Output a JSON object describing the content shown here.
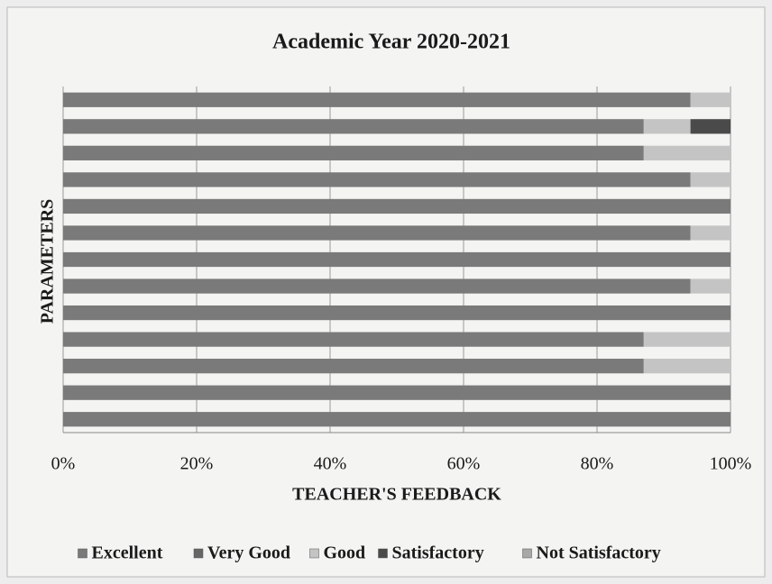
{
  "chart_data": {
    "type": "stacked_barh",
    "title": "Academic Year 2020-2021",
    "xlabel": "TEACHER'S FEEDBACK",
    "ylabel": "PARAMETERS",
    "categories": [
      null,
      null,
      null,
      null,
      null,
      null,
      null,
      null,
      null,
      null,
      null,
      null,
      null
    ],
    "series": [
      {
        "name": "Excellent",
        "color": "#7a7a7a",
        "values": [
          94,
          87,
          87,
          94,
          100,
          94,
          100,
          94,
          100,
          87,
          87,
          100,
          100
        ]
      },
      {
        "name": "Very Good",
        "color": "#666666",
        "values": [
          0,
          0,
          0,
          0,
          0,
          0,
          0,
          0,
          0,
          0,
          0,
          0,
          0
        ]
      },
      {
        "name": "Good",
        "color": "#c4c4c4",
        "values": [
          6,
          7,
          13,
          6,
          0,
          6,
          0,
          6,
          0,
          13,
          13,
          0,
          0
        ]
      },
      {
        "name": "Satisfactory",
        "color": "#4a4a4a",
        "values": [
          0,
          6,
          0,
          0,
          0,
          0,
          0,
          0,
          0,
          0,
          0,
          0,
          0
        ]
      },
      {
        "name": "Not Satisfactory",
        "color": "#a8a8a8",
        "values": [
          0,
          0,
          0,
          0,
          0,
          0,
          0,
          0,
          0,
          0,
          0,
          0,
          0
        ]
      }
    ],
    "xlim": [
      0,
      100
    ],
    "xticks": [
      {
        "value": 0,
        "label": "0%"
      },
      {
        "value": 20,
        "label": "20%"
      },
      {
        "value": 40,
        "label": "40%"
      },
      {
        "value": 60,
        "label": "60%"
      },
      {
        "value": 80,
        "label": "80%"
      },
      {
        "value": 100,
        "label": "100%"
      }
    ],
    "grid": true,
    "legend": "bottom"
  }
}
